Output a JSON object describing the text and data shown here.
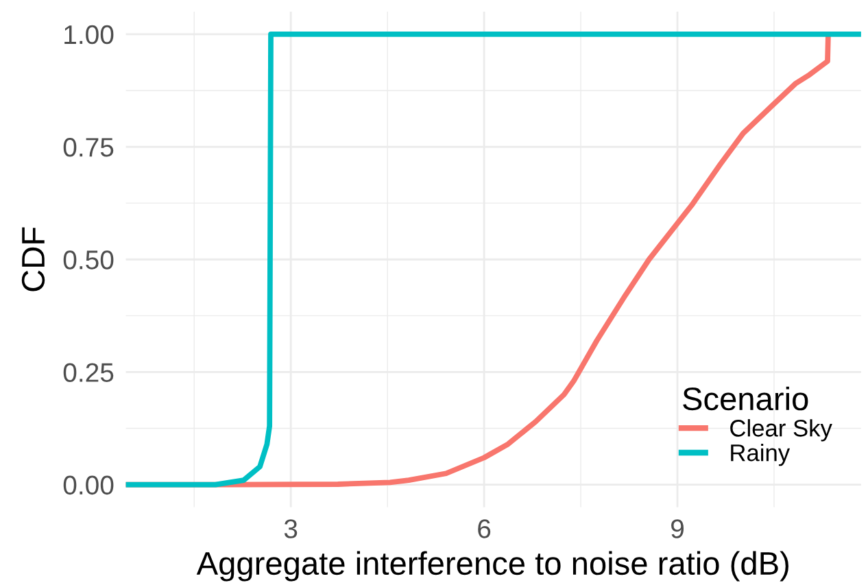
{
  "chart_data": {
    "type": "line",
    "xlabel": "Aggregate interference to noise ratio (dB)",
    "ylabel": "CDF",
    "legend_title": "Scenario",
    "legend": "bottom right",
    "grid": true,
    "xlim": [
      0.44,
      11.85
    ],
    "ylim": [
      -0.05,
      1.05
    ],
    "xticks": [
      {
        "value": 1.5,
        "label": null
      },
      3,
      {
        "value": 4.5,
        "label": null
      },
      6,
      {
        "value": 7.5,
        "label": null
      },
      9,
      {
        "value": 10.5,
        "label": null
      }
    ],
    "yticks": [
      {
        "value": 0,
        "label": "0.00"
      },
      {
        "value": 0.125,
        "label": null
      },
      {
        "value": 0.25,
        "label": "0.25"
      },
      {
        "value": 0.375,
        "label": null
      },
      {
        "value": 0.5,
        "label": "0.50"
      },
      {
        "value": 0.625,
        "label": null
      },
      {
        "value": 0.75,
        "label": "0.75"
      },
      {
        "value": 0.875,
        "label": null
      },
      {
        "value": 1,
        "label": "1.00"
      }
    ],
    "series": [
      {
        "name": "Clear Sky",
        "color": "#f8766d",
        "x": [
          0.44,
          1.9,
          3.73,
          4.54,
          4.83,
          5.41,
          6.0,
          6.37,
          6.8,
          7.24,
          7.39,
          7.75,
          8.19,
          8.56,
          9.0,
          9.22,
          9.66,
          10.02,
          10.46,
          10.83,
          11.05,
          11.33,
          11.34
        ],
        "values": [
          0,
          0,
          0.001,
          0.005,
          0.01,
          0.025,
          0.06,
          0.09,
          0.14,
          0.2,
          0.23,
          0.32,
          0.42,
          0.5,
          0.58,
          0.62,
          0.71,
          0.78,
          0.84,
          0.89,
          0.91,
          0.94,
          1.0
        ]
      },
      {
        "name": "Rainy",
        "color": "#00bfc4",
        "x": [
          0.44,
          1.83,
          2.27,
          2.52,
          2.63,
          2.67,
          2.69,
          11.85
        ],
        "values": [
          0,
          0,
          0.01,
          0.04,
          0.09,
          0.13,
          1.0,
          1.0
        ]
      }
    ]
  }
}
